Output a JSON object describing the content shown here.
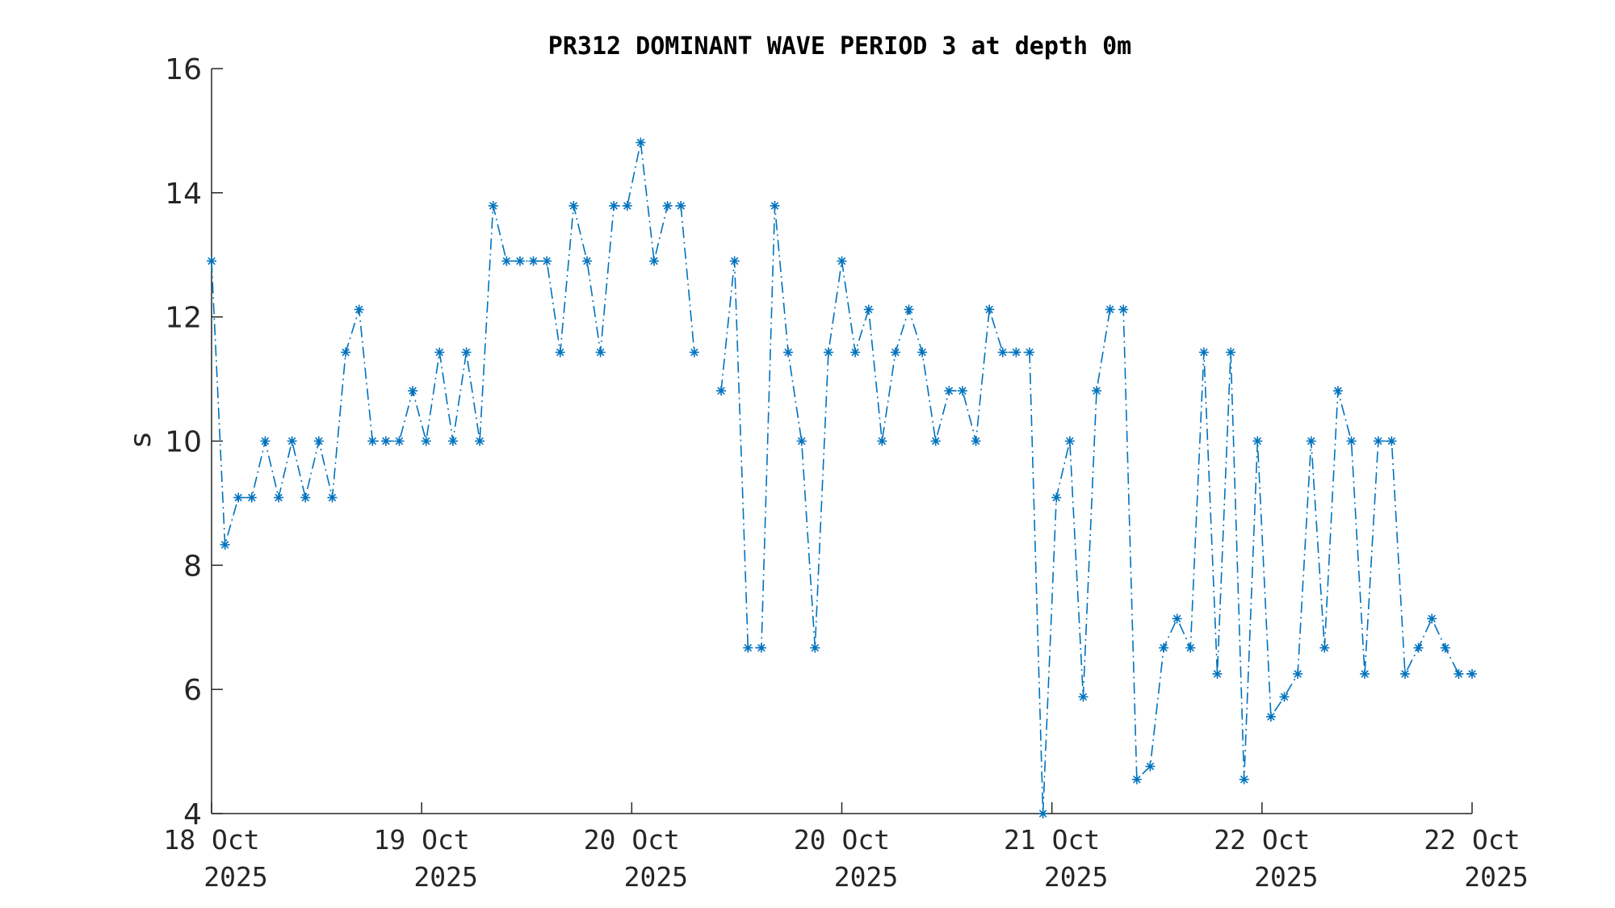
{
  "chart_data": {
    "type": "line",
    "title": "PR312 DOMINANT WAVE PERIOD 3 at depth 0m",
    "xlabel": "",
    "ylabel": "s",
    "ylim": [
      4,
      16
    ],
    "yticks": [
      4,
      6,
      8,
      10,
      12,
      14,
      16
    ],
    "xlim": [
      "2025-10-18T00:00",
      "2025-10-22T00:00"
    ],
    "xtick_labels": [
      [
        "18 Oct",
        "2025"
      ],
      [
        "19 Oct",
        "2025"
      ],
      [
        "20 Oct",
        "2025"
      ],
      [
        "20 Oct",
        "2025"
      ],
      [
        "21 Oct",
        "2025"
      ],
      [
        "22 Oct",
        "2025"
      ],
      [
        "22 Oct",
        "2025"
      ]
    ],
    "grid": false,
    "line_style": "dash-dot",
    "marker": "asterisk",
    "color": "#0072BD",
    "series": [
      {
        "values": [
          12.9,
          8.33,
          9.09,
          9.09,
          10.0,
          9.09,
          10.0,
          9.09,
          10.0,
          9.09,
          11.43,
          12.12,
          10.0,
          10.0,
          10.0,
          10.81,
          10.0,
          11.43,
          10.0,
          11.43,
          10.0,
          13.79,
          12.9,
          12.9,
          12.9,
          12.9,
          11.43,
          13.79,
          12.9,
          11.43,
          13.79,
          13.79,
          14.81,
          12.9,
          13.79,
          13.79,
          11.43,
          null,
          10.81,
          12.9,
          6.67,
          6.67,
          13.79,
          11.43,
          10.0,
          6.67,
          11.43,
          12.9,
          11.43,
          12.12,
          10.0,
          11.43,
          12.12,
          11.43,
          10.0,
          10.81,
          10.81,
          10.0,
          12.12,
          11.43,
          11.43,
          11.43,
          4.0,
          9.09,
          10.0,
          5.88,
          10.81,
          12.12,
          12.12,
          4.55,
          4.76,
          6.67,
          7.14,
          6.67,
          11.43,
          6.25,
          11.43,
          4.55,
          10.0,
          5.56,
          5.88,
          6.25,
          10.0,
          6.67,
          10.81,
          10.0,
          6.25,
          10.0,
          10.0,
          6.25,
          6.67,
          7.14,
          6.67,
          6.25,
          6.25
        ]
      }
    ]
  }
}
